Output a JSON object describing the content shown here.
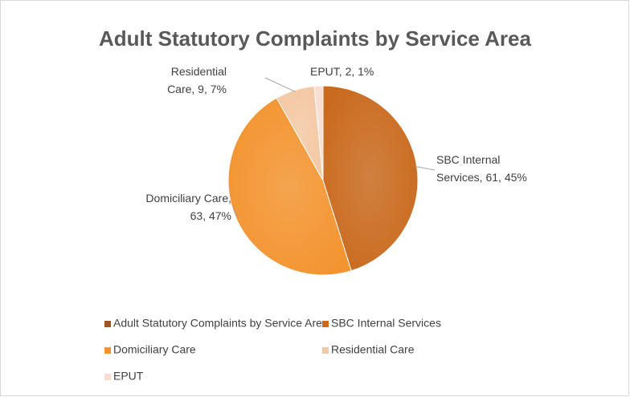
{
  "chart_data": {
    "type": "pie",
    "title": "Adult Statutory Complaints by Service Area",
    "series_name": "Adult Statutory Complaints by Service Area",
    "series_color": "#a3541c",
    "categories": [
      "SBC Internal Services",
      "Domiciliary Care",
      "Residential Care",
      "EPUT"
    ],
    "values": [
      61,
      63,
      9,
      2
    ],
    "value_labels": [
      "SBC Internal Services, 61, 45%",
      "Domiciliary Care, 63, 47%",
      "Residential Care, 9, 7%",
      "EPUT, 2, 1%"
    ],
    "colors": [
      "#c96a1e",
      "#f39430",
      "#f3c8a4",
      "#f8ddd0"
    ],
    "legend": "bottom"
  }
}
